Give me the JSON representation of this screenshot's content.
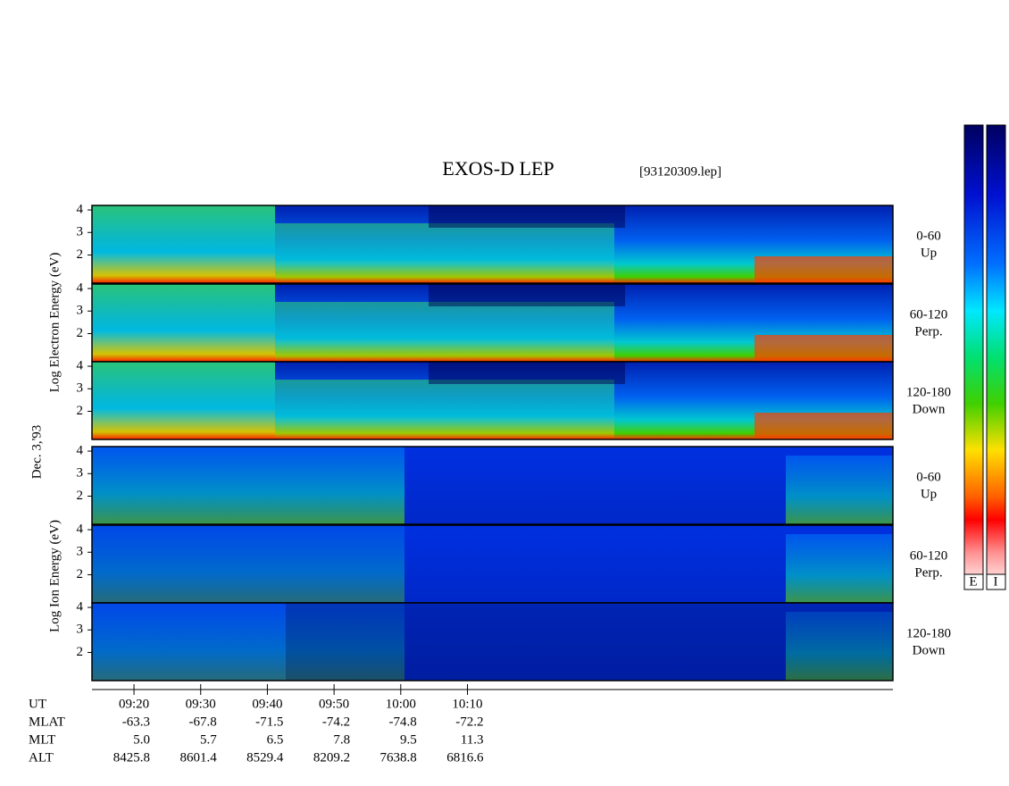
{
  "header": {
    "title": "EXOS-D LEP",
    "file": "[93120309.lep]"
  },
  "chart_data": {
    "type": "spectrogram",
    "date_label": "Dec. 3,'93",
    "electron_axis_label": "Log Electron Energy (eV)",
    "ion_axis_label": "Log Ion Energy (eV)",
    "ylim": [
      0.75,
      4.2
    ],
    "yticks": [
      2,
      3,
      4
    ],
    "xlim": [
      553.7,
      673.8
    ],
    "xticks": [
      {
        "value": 560,
        "label": "09:20"
      },
      {
        "value": 570,
        "label": "09:30"
      },
      {
        "value": 580,
        "label": "09:40"
      },
      {
        "value": 590,
        "label": "09:50"
      },
      {
        "value": 600,
        "label": "10:00"
      },
      {
        "value": 610,
        "label": "10:10"
      }
    ],
    "x_axis_label": "UT",
    "panels": [
      {
        "angle": "0-60",
        "direction": "Up"
      },
      {
        "angle": "60-120",
        "direction": "Perp."
      },
      {
        "angle": "120-180",
        "direction": "Down"
      },
      {
        "angle": "0-60",
        "direction": "Up"
      },
      {
        "angle": "60-120",
        "direction": "Perp."
      },
      {
        "angle": "120-180",
        "direction": "Down"
      }
    ],
    "colorbar_labels": [
      "E",
      "I"
    ],
    "ephemeris": [
      {
        "label": "MLAT",
        "values": [
          "-63.3",
          "-67.8",
          "-71.5",
          "-74.2",
          "-74.8",
          "-72.2"
        ]
      },
      {
        "label": "MLT",
        "values": [
          "5.0",
          "5.7",
          "6.5",
          "7.8",
          "9.5",
          "11.3"
        ]
      },
      {
        "label": "ALT",
        "values": [
          "8425.8",
          "8601.4",
          "8529.4",
          "8209.2",
          "7638.8",
          "6816.6"
        ]
      }
    ]
  }
}
